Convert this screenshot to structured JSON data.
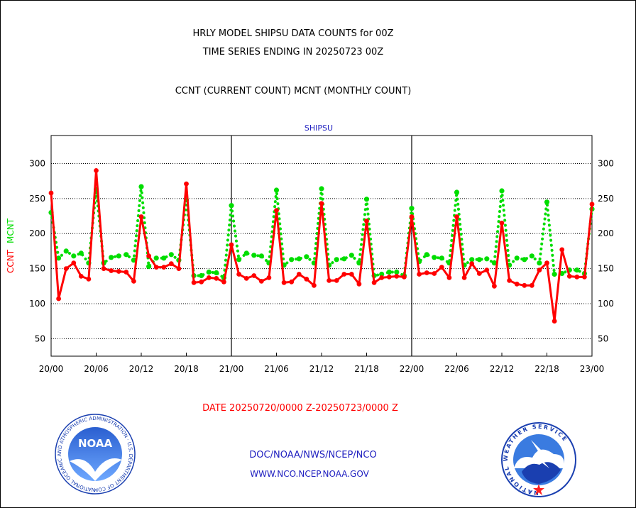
{
  "header": {
    "title_line1": "HRLY MODEL SHIPSU DATA COUNTS for 00Z",
    "title_line2": "TIME SERIES ENDING IN 20250723 00Z",
    "subtitle": "CCNT (CURRENT COUNT) MCNT (MONTHLY COUNT)"
  },
  "footer": {
    "date_range": "DATE 20250720/0000 Z-20250723/0000 Z",
    "org_line": "DOC/NOAA/NWS/NCEP/NCO",
    "url_line": "WWW.NCO.NCEP.NOAA.GOV"
  },
  "logos": {
    "noaa_text": "NOAA",
    "noaa_ring": "NATIONAL OCEANIC AND ATMOSPHERIC ADMINISTRATION · U.S. DEPARTMENT OF COMMERCE ·",
    "nws_ring": "NATIONAL WEATHER SERVICE"
  },
  "colors": {
    "ccnt": "#ff0000",
    "mcnt": "#00dd00",
    "label_blue": "#2020c0",
    "axis": "#000000"
  },
  "chart_data": {
    "type": "line",
    "title": "SHIPSU",
    "ylabel_left": [
      "CCNT",
      "MCNT"
    ],
    "ylim": [
      25,
      340
    ],
    "yticks": [
      50,
      100,
      150,
      200,
      250,
      300
    ],
    "x_range": [
      0,
      72
    ],
    "x_tick_hours": [
      0,
      6,
      12,
      18,
      24,
      30,
      36,
      42,
      48,
      54,
      60,
      66,
      72
    ],
    "x_tick_labels": [
      "20/00",
      "20/06",
      "20/12",
      "20/18",
      "21/00",
      "21/06",
      "21/12",
      "21/18",
      "22/00",
      "22/06",
      "22/12",
      "22/18",
      "23/00"
    ],
    "day_dividers": [
      24,
      48
    ],
    "grid": "horizontal-dotted",
    "series": [
      {
        "name": "CCNT",
        "color": "#ff0000",
        "values": [
          258,
          107,
          150,
          158,
          139,
          135,
          290,
          150,
          147,
          146,
          145,
          132,
          224,
          168,
          152,
          152,
          157,
          150,
          271,
          130,
          131,
          137,
          136,
          131,
          184,
          142,
          136,
          140,
          132,
          137,
          233,
          130,
          131,
          142,
          135,
          126,
          243,
          133,
          133,
          142,
          142,
          128,
          218,
          130,
          137,
          138,
          139,
          138,
          224,
          142,
          144,
          143,
          152,
          137,
          224,
          137,
          157,
          143,
          148,
          125,
          215,
          133,
          128,
          126,
          126,
          148,
          158,
          75,
          177,
          139,
          138,
          138,
          242
        ]
      },
      {
        "name": "MCNT",
        "color": "#00dd00",
        "values": [
          230,
          165,
          175,
          168,
          172,
          158,
          263,
          158,
          166,
          168,
          170,
          162,
          267,
          153,
          165,
          165,
          170,
          162,
          248,
          140,
          140,
          145,
          144,
          137,
          240,
          163,
          172,
          169,
          168,
          158,
          262,
          155,
          163,
          164,
          167,
          158,
          264,
          155,
          163,
          164,
          169,
          158,
          249,
          140,
          142,
          145,
          145,
          140,
          236,
          160,
          170,
          166,
          165,
          158,
          259,
          155,
          163,
          163,
          164,
          158,
          261,
          155,
          165,
          163,
          168,
          158,
          245,
          142,
          143,
          148,
          148,
          143,
          235
        ]
      }
    ]
  }
}
